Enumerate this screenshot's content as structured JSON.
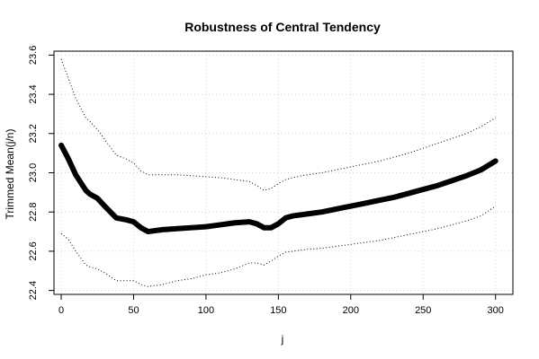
{
  "chart_data": {
    "type": "line",
    "title": "Robustness of Central Tendency",
    "xlabel": "j",
    "ylabel": "Trimmed Mean(j/n)",
    "xlim": [
      -5,
      312
    ],
    "ylim": [
      22.38,
      23.62
    ],
    "xticks": [
      0,
      50,
      100,
      150,
      200,
      250,
      300
    ],
    "yticks": [
      22.4,
      22.6,
      22.8,
      23.0,
      23.2,
      23.4,
      23.6
    ],
    "grid": true,
    "series": [
      {
        "role": "mean",
        "style": "thick-solid",
        "x": [
          0,
          5,
          10,
          17,
          20,
          25,
          30,
          38,
          45,
          50,
          55,
          60,
          70,
          80,
          90,
          100,
          110,
          120,
          130,
          135,
          140,
          145,
          150,
          155,
          160,
          170,
          180,
          190,
          200,
          210,
          220,
          230,
          240,
          250,
          260,
          270,
          280,
          290,
          300
        ],
        "y": [
          23.14,
          23.07,
          22.99,
          22.91,
          22.89,
          22.87,
          22.83,
          22.77,
          22.76,
          22.75,
          22.72,
          22.7,
          22.71,
          22.715,
          22.72,
          22.725,
          22.735,
          22.745,
          22.75,
          22.74,
          22.72,
          22.72,
          22.74,
          22.77,
          22.78,
          22.79,
          22.8,
          22.815,
          22.83,
          22.845,
          22.86,
          22.875,
          22.895,
          22.915,
          22.935,
          22.96,
          22.985,
          23.015,
          23.06
        ]
      },
      {
        "role": "upper-bound",
        "style": "dotted",
        "x": [
          0,
          5,
          10,
          17,
          20,
          25,
          30,
          38,
          45,
          50,
          55,
          60,
          70,
          80,
          90,
          100,
          110,
          120,
          130,
          135,
          140,
          145,
          150,
          155,
          160,
          170,
          180,
          190,
          200,
          210,
          220,
          230,
          240,
          250,
          260,
          270,
          280,
          290,
          300
        ],
        "y": [
          23.58,
          23.48,
          23.38,
          23.28,
          23.26,
          23.22,
          23.17,
          23.09,
          23.07,
          23.05,
          23.01,
          22.99,
          22.99,
          22.99,
          22.985,
          22.98,
          22.975,
          22.965,
          22.955,
          22.935,
          22.91,
          22.92,
          22.945,
          22.965,
          22.975,
          22.99,
          23.0,
          23.015,
          23.03,
          23.045,
          23.06,
          23.08,
          23.1,
          23.125,
          23.15,
          23.175,
          23.2,
          23.235,
          23.28
        ]
      },
      {
        "role": "lower-bound",
        "style": "dotted",
        "x": [
          0,
          5,
          10,
          17,
          20,
          25,
          30,
          38,
          45,
          50,
          55,
          60,
          70,
          80,
          90,
          100,
          110,
          120,
          130,
          135,
          140,
          145,
          150,
          155,
          160,
          170,
          180,
          190,
          200,
          210,
          220,
          230,
          240,
          250,
          260,
          270,
          280,
          290,
          300
        ],
        "y": [
          22.69,
          22.66,
          22.6,
          22.53,
          22.52,
          22.51,
          22.49,
          22.45,
          22.45,
          22.45,
          22.43,
          22.42,
          22.43,
          22.45,
          22.46,
          22.48,
          22.49,
          22.51,
          22.54,
          22.54,
          22.53,
          22.55,
          22.575,
          22.595,
          22.6,
          22.61,
          22.615,
          22.625,
          22.635,
          22.645,
          22.655,
          22.67,
          22.685,
          22.7,
          22.715,
          22.735,
          22.755,
          22.78,
          22.83
        ]
      }
    ]
  }
}
